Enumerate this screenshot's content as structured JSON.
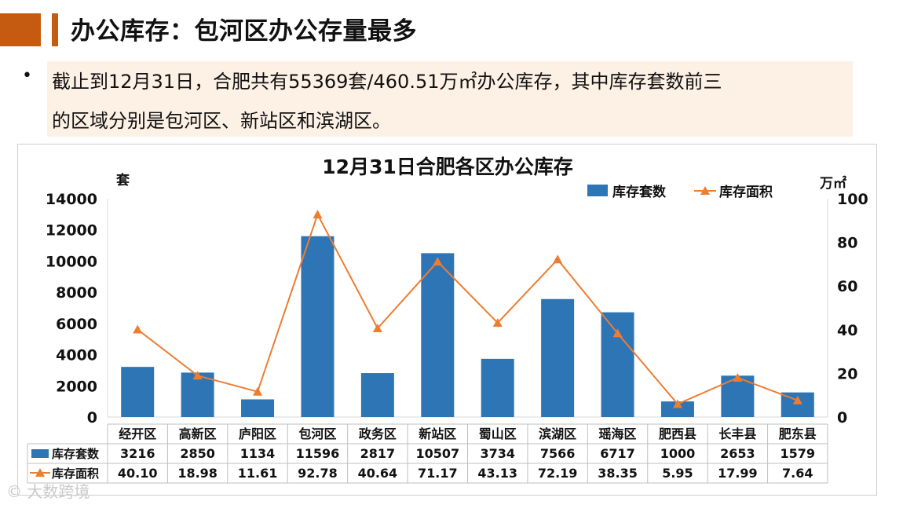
{
  "slide": {
    "heading": "办公库存：包河区办公存量最多",
    "bullet": "•",
    "note_line1": "截止到12月31日，合肥共有55369套/460.51万㎡办公库存，其中库存套数前三",
    "note_line2": "的区域分别是包河区、新站区和滨湖区。",
    "watermark": "© 大数跨境"
  },
  "colors": {
    "accent": "#c55a11",
    "bar": "#2e75b6",
    "line": "#ed7d31"
  },
  "chart_data": {
    "type": "bar",
    "title": "12月31日合肥各区办公库存",
    "ylabel": "套",
    "y2label": "万㎡",
    "ylim": [
      0,
      14000
    ],
    "y2lim": [
      0,
      100
    ],
    "yticks": [
      0,
      2000,
      4000,
      6000,
      8000,
      10000,
      12000,
      14000
    ],
    "y2ticks": [
      0,
      20,
      40,
      60,
      80,
      100
    ],
    "legend_position": "top-right",
    "grid": false,
    "categories": [
      "经开区",
      "高新区",
      "庐阳区",
      "包河区",
      "政务区",
      "新站区",
      "蜀山区",
      "滨湖区",
      "瑶海区",
      "肥西县",
      "长丰县",
      "肥东县"
    ],
    "series": [
      {
        "name": "库存套数",
        "type": "bar",
        "axis": "left",
        "values": [
          3216,
          2850,
          1134,
          11596,
          2817,
          10507,
          3734,
          7566,
          6717,
          1000,
          2653,
          1579
        ]
      },
      {
        "name": "库存面积",
        "type": "line",
        "axis": "right",
        "values": [
          40.1,
          18.98,
          11.61,
          92.78,
          40.64,
          71.17,
          43.13,
          72.19,
          38.35,
          5.95,
          17.99,
          7.64
        ]
      }
    ],
    "table_labels": {
      "bar": [
        "3216",
        "2850",
        "1134",
        "11596",
        "2817",
        "10507",
        "3734",
        "7566",
        "6717",
        "1000",
        "2653",
        "1579"
      ],
      "line": [
        "40.10",
        "18.98",
        "11.61",
        "92.78",
        "40.64",
        "71.17",
        "43.13",
        "72.19",
        "38.35",
        "5.95",
        "17.99",
        "7.64"
      ]
    }
  }
}
